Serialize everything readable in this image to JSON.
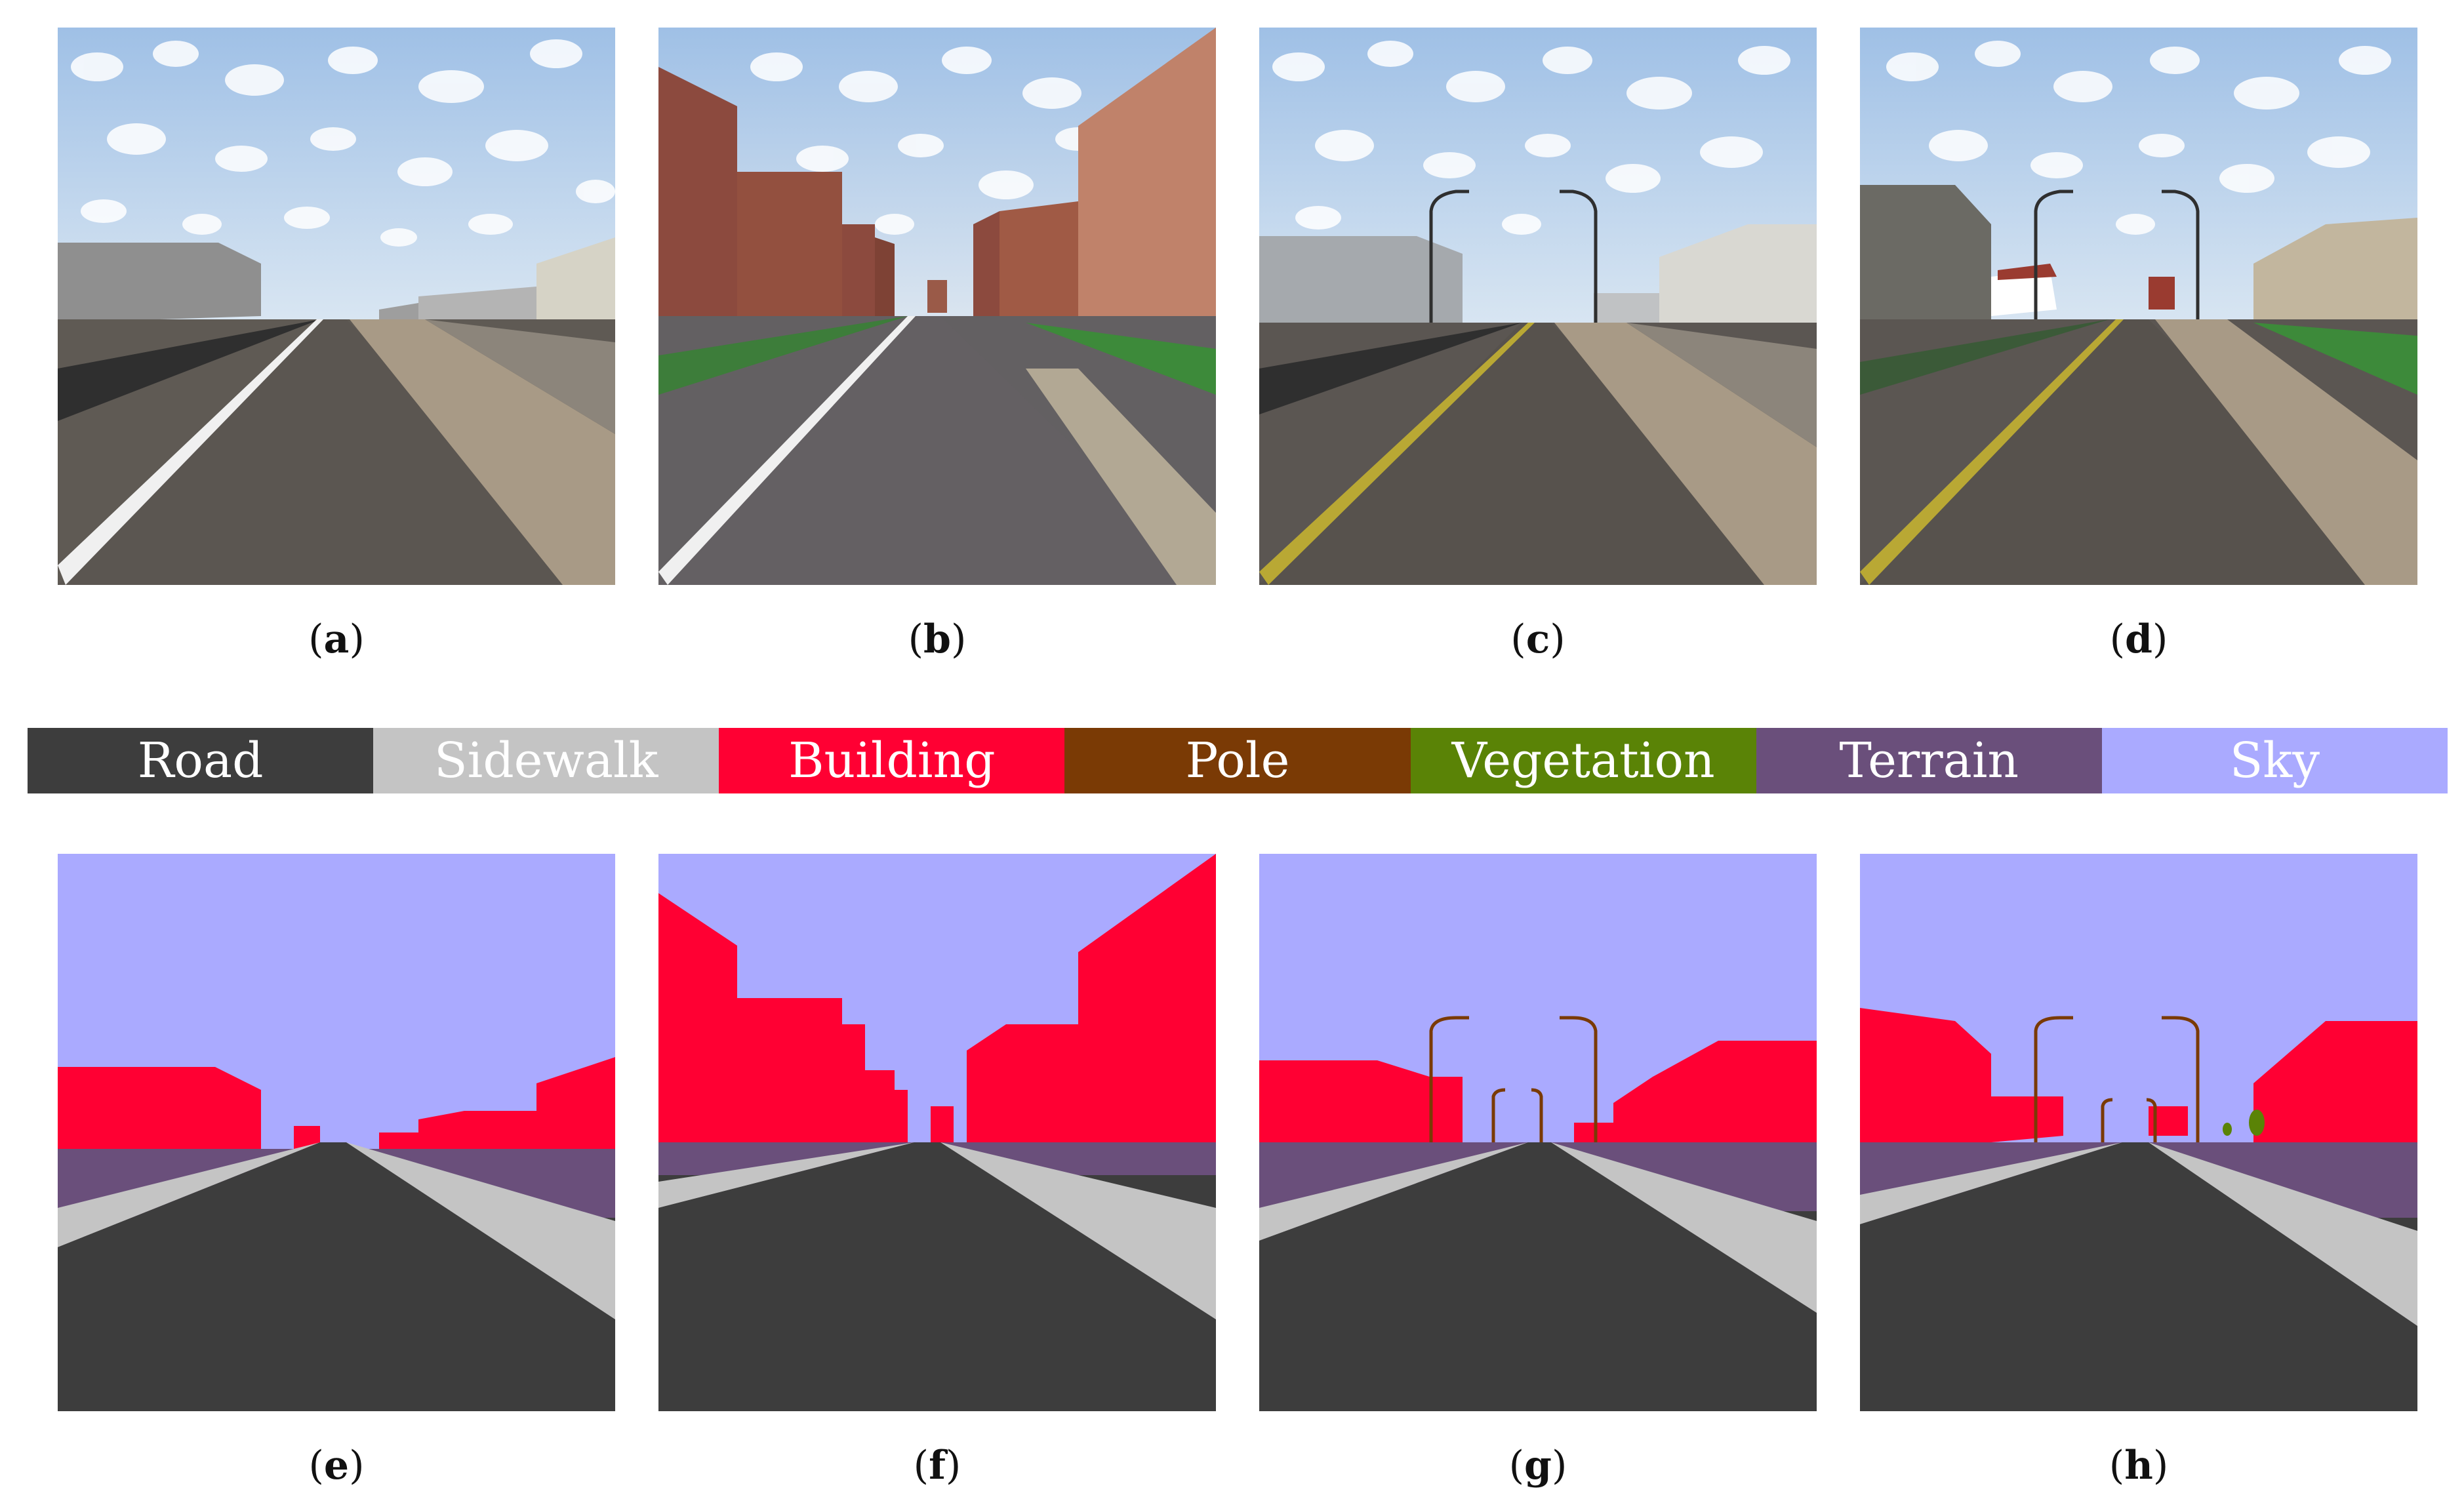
{
  "captions": {
    "a": "a",
    "b": "b",
    "c": "c",
    "d": "d",
    "e": "e",
    "f": "f",
    "g": "g",
    "h": "h"
  },
  "legend": [
    {
      "label": "Road",
      "color": "#3d3d3d"
    },
    {
      "label": "Sidewalk",
      "color": "#c4c4c4"
    },
    {
      "label": "Building",
      "color": "#ff0033"
    },
    {
      "label": "Pole",
      "color": "#7a3a05"
    },
    {
      "label": "Vegetation",
      "color": "#5a8306"
    },
    {
      "label": "Terrain",
      "color": "#6a4f7b"
    },
    {
      "label": "Sky",
      "color": "#aaaaff"
    }
  ]
}
